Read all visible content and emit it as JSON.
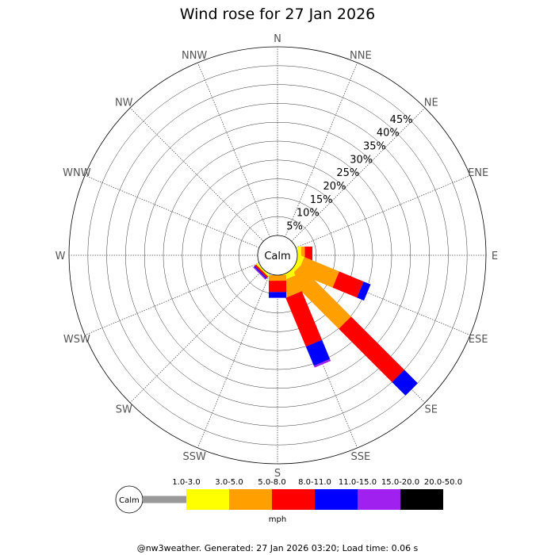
{
  "chart_data": {
    "type": "wind_rose",
    "title": "Wind rose for 27 Jan 2026",
    "calm_label": "Calm",
    "directions": [
      "N",
      "NNE",
      "NE",
      "ENE",
      "E",
      "ESE",
      "SE",
      "SSE",
      "S",
      "SSW",
      "SW",
      "WSW",
      "W",
      "WNW",
      "NW",
      "NNW"
    ],
    "radial_ticks": [
      "5%",
      "10%",
      "15%",
      "20%",
      "25%",
      "30%",
      "35%",
      "40%",
      "45%"
    ],
    "radial_max": 50,
    "speed_bins": [
      {
        "label": "1.0-3.0",
        "color": "#999999"
      },
      {
        "label": "3.0-5.0",
        "color": "#ffff00"
      },
      {
        "label": "5.0-8.0",
        "color": "#ff9f00"
      },
      {
        "label": "8.0-11.0",
        "color": "#ff0000"
      },
      {
        "label": "11.0-15.0",
        "color": "#0000ff"
      },
      {
        "label": "15.0-20.0",
        "color": "#a020f0"
      },
      {
        "label": "20.0-50.0",
        "color": "#000000"
      }
    ],
    "units": "mph",
    "series": [
      {
        "direction": "E",
        "values": [
          0,
          1,
          1,
          2,
          0,
          0,
          0
        ]
      },
      {
        "direction": "ESE",
        "values": [
          0,
          1.5,
          10,
          7,
          2,
          0,
          0
        ]
      },
      {
        "direction": "SE",
        "values": [
          0,
          1,
          19,
          20,
          5,
          0,
          0
        ]
      },
      {
        "direction": "SSE",
        "values": [
          0,
          1.5,
          4.5,
          14,
          5.5,
          0.5,
          0
        ]
      },
      {
        "direction": "S",
        "values": [
          0,
          0,
          1.5,
          3,
          1.5,
          0,
          0
        ]
      },
      {
        "direction": "SSW",
        "values": [
          0,
          0,
          0,
          0,
          0,
          0,
          0
        ]
      },
      {
        "direction": "SW",
        "values": [
          0,
          0.5,
          0,
          0.5,
          0.3,
          0.3,
          0
        ]
      }
    ]
  },
  "footer": "@nw3weather. Generated: 27 Jan 2026 03:20; Load time: 0.06 s"
}
